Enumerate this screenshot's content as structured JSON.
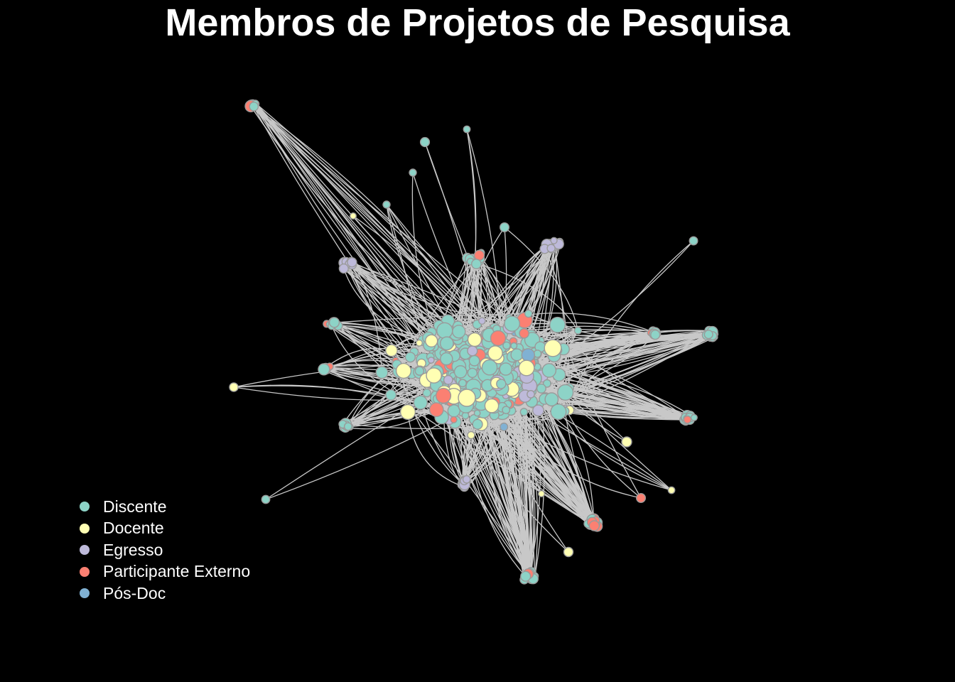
{
  "title": "Membros de Projetos de Pesquisa",
  "legend": [
    {
      "label": "Discente",
      "color": "#8DD3C7"
    },
    {
      "label": "Docente",
      "color": "#FFFFB3"
    },
    {
      "label": "Egresso",
      "color": "#BEBADA"
    },
    {
      "label": "Participante Externo",
      "color": "#FB8072"
    },
    {
      "label": "Pós-Doc",
      "color": "#80B1D3"
    }
  ],
  "colors": {
    "background": "#000000",
    "edge": "#C8C8C8",
    "node_border": "#9A9A9A"
  }
}
